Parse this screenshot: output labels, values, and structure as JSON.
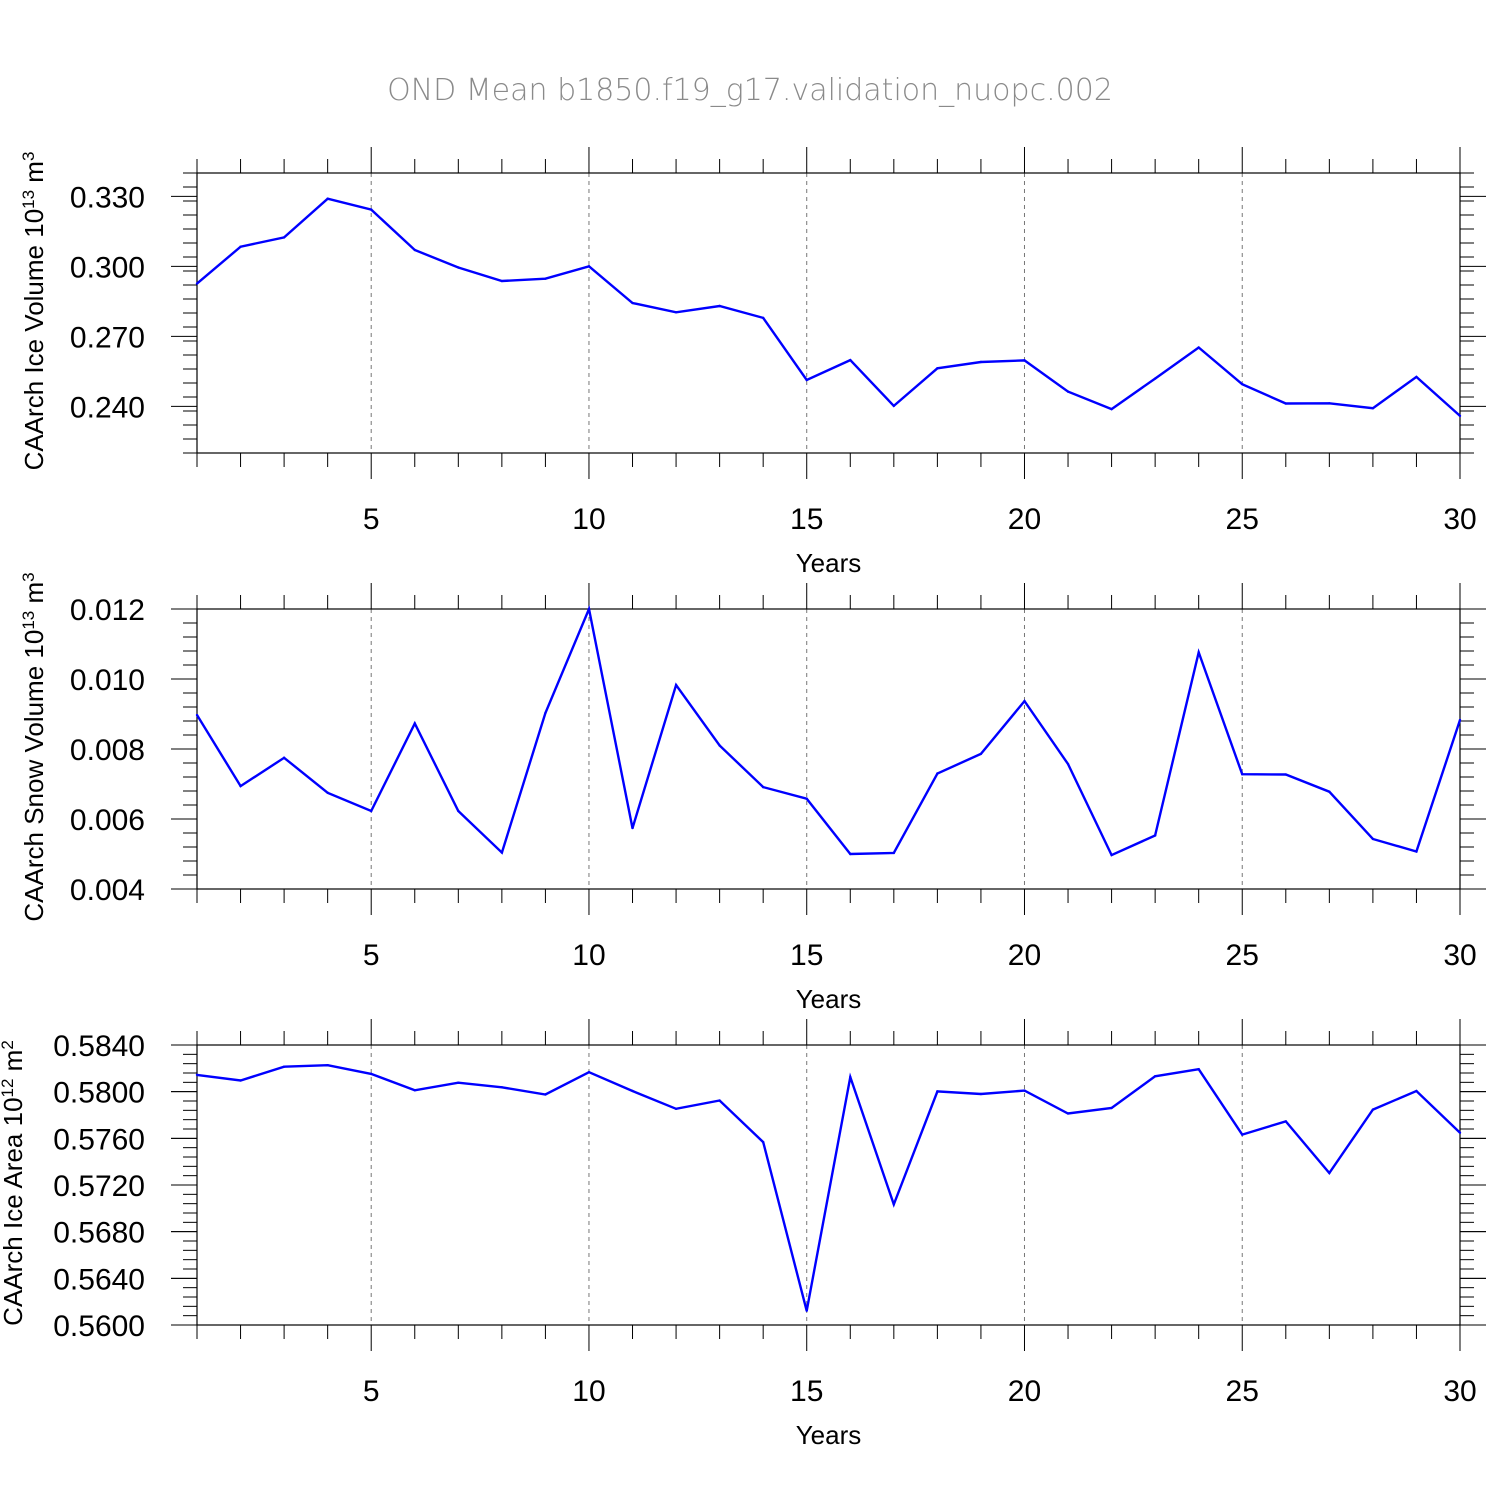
{
  "title": "OND Mean b1850.f19_g17.validation_nuopc.002",
  "line_color": "#0000ff",
  "chart_data": [
    {
      "type": "line",
      "ylabel": "CAArch Ice Volume 10",
      "ylabel_exp": "13",
      "ylabel_unit": " m",
      "ylabel_unit_exp": "3",
      "xlabel": "Years",
      "xlim": [
        1,
        30
      ],
      "ylim": [
        0.22,
        0.34
      ],
      "xticks": [
        5,
        10,
        15,
        20,
        25,
        30
      ],
      "xtick_labels": [
        "5",
        "10",
        "15",
        "20",
        "25",
        "30"
      ],
      "yticks": [
        0.24,
        0.27,
        0.3,
        0.33
      ],
      "ytick_labels": [
        "0.240",
        "0.270",
        "0.300",
        "0.330"
      ],
      "y_minor_step": 0.006,
      "grid": "dashed vertical at major x ticks",
      "x": [
        1,
        2,
        3,
        4,
        5,
        6,
        7,
        8,
        9,
        10,
        11,
        12,
        13,
        14,
        15,
        16,
        17,
        18,
        19,
        20,
        21,
        22,
        23,
        24,
        25,
        26,
        27,
        28,
        29,
        30
      ],
      "values": [
        0.2926,
        0.3084,
        0.3124,
        0.329,
        0.3243,
        0.307,
        0.2995,
        0.2937,
        0.2947,
        0.3,
        0.2843,
        0.2803,
        0.283,
        0.2779,
        0.2513,
        0.2598,
        0.2402,
        0.2563,
        0.259,
        0.2597,
        0.2463,
        0.2388,
        0.2519,
        0.2652,
        0.2495,
        0.2412,
        0.2413,
        0.2392,
        0.2526,
        0.2359
      ]
    },
    {
      "type": "line",
      "ylabel": "CAArch Snow Volume 10",
      "ylabel_exp": "13",
      "ylabel_unit": " m",
      "ylabel_unit_exp": "3",
      "xlabel": "Years",
      "xlim": [
        1,
        30
      ],
      "ylim": [
        0.004,
        0.012
      ],
      "xticks": [
        5,
        10,
        15,
        20,
        25,
        30
      ],
      "xtick_labels": [
        "5",
        "10",
        "15",
        "20",
        "25",
        "30"
      ],
      "yticks": [
        0.004,
        0.006,
        0.008,
        0.01,
        0.012
      ],
      "ytick_labels": [
        "0.004",
        "0.006",
        "0.008",
        "0.010",
        "0.012"
      ],
      "y_minor_step": 0.0004,
      "grid": "dashed vertical at major x ticks",
      "x": [
        1,
        2,
        3,
        4,
        5,
        6,
        7,
        8,
        9,
        10,
        11,
        12,
        13,
        14,
        15,
        16,
        17,
        18,
        19,
        20,
        21,
        22,
        23,
        24,
        25,
        26,
        27,
        28,
        29,
        30
      ],
      "values": [
        0.00897,
        0.00694,
        0.00775,
        0.00675,
        0.00623,
        0.00873,
        0.00623,
        0.00504,
        0.00903,
        0.012,
        0.00574,
        0.00983,
        0.0081,
        0.00691,
        0.00658,
        0.005,
        0.00503,
        0.0073,
        0.00786,
        0.00937,
        0.00757,
        0.00497,
        0.00553,
        0.01076,
        0.00728,
        0.00727,
        0.00678,
        0.00543,
        0.00507,
        0.00883
      ]
    },
    {
      "type": "line",
      "ylabel": "CAArch Ice Area 10",
      "ylabel_exp": "12",
      "ylabel_unit": " m",
      "ylabel_unit_exp": "2",
      "xlabel": "Years",
      "xlim": [
        1,
        30
      ],
      "ylim": [
        0.56,
        0.584
      ],
      "xticks": [
        5,
        10,
        15,
        20,
        25,
        30
      ],
      "xtick_labels": [
        "5",
        "10",
        "15",
        "20",
        "25",
        "30"
      ],
      "yticks": [
        0.56,
        0.564,
        0.568,
        0.572,
        0.576,
        0.58,
        0.584
      ],
      "ytick_labels": [
        "0.5600",
        "0.5640",
        "0.5680",
        "0.5720",
        "0.5760",
        "0.5800",
        "0.5840"
      ],
      "y_minor_step": 0.0008,
      "grid": "dashed vertical at major x ticks",
      "x": [
        1,
        2,
        3,
        4,
        5,
        6,
        7,
        8,
        9,
        10,
        11,
        12,
        13,
        14,
        15,
        16,
        17,
        18,
        19,
        20,
        21,
        22,
        23,
        24,
        25,
        26,
        27,
        28,
        29,
        30
      ],
      "values": [
        0.58144,
        0.58096,
        0.58214,
        0.58227,
        0.58152,
        0.58012,
        0.58077,
        0.58037,
        0.57976,
        0.58167,
        0.58006,
        0.57853,
        0.57924,
        0.57568,
        0.56122,
        0.58125,
        0.57034,
        0.58002,
        0.5798,
        0.58009,
        0.57813,
        0.5786,
        0.58132,
        0.58193,
        0.57632,
        0.57745,
        0.57303,
        0.57846,
        0.58006,
        0.57648
      ]
    }
  ]
}
